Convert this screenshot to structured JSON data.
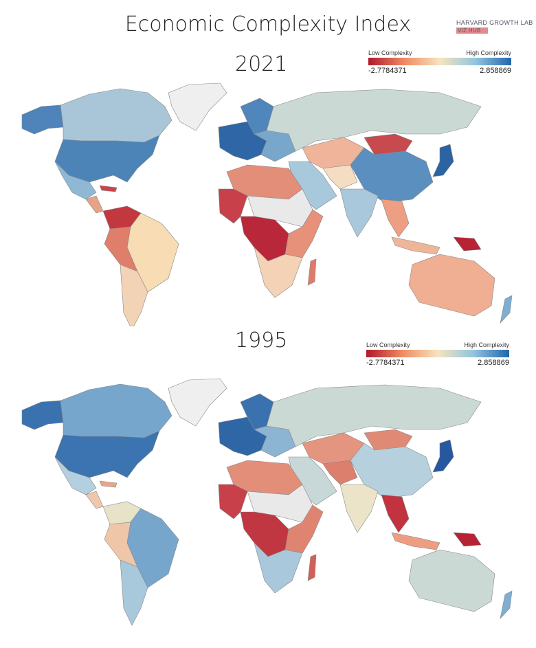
{
  "title": "Economic Complexity Index",
  "brand": {
    "line1": "HARVARD GROWTH LAB",
    "line2": "VIZ HUB"
  },
  "maps": [
    {
      "year": "2021",
      "legend": {
        "low_label": "Low Complexity",
        "high_label": "High Complexity",
        "min": "-2.7784371",
        "max": "2.858869"
      },
      "region_colors": {
        "alaska": "#4e84b9",
        "canada": "#a9c6d8",
        "greenland": "#efefef",
        "usa": "#4c84b8",
        "mexico": "#8fb8d4",
        "caribbean": "#c9444d",
        "central_america": "#e8a286",
        "north_sa": "#c3383f",
        "brazil": "#f7dcb4",
        "west_sa": "#df7e6b",
        "argentina": "#f3d3b6",
        "europe_west": "#2f67a6",
        "europe_east": "#79a7cc",
        "scandinavia": "#4f86bb",
        "russia": "#cbd9d4",
        "central_asia": "#f0b49a",
        "middle_east": "#a8c8dc",
        "iran": "#f5ddc3",
        "mongolia": "#c74a4e",
        "china": "#5a8fc0",
        "japan": "#2b63a3",
        "india": "#a9c8db",
        "se_asia": "#ee9e83",
        "indonesia": "#eeb698",
        "png": "#b72235",
        "north_africa": "#e38e79",
        "west_africa": "#c7404a",
        "sahel": "#e9e9e9",
        "central_africa": "#b8283a",
        "east_africa": "#e7907a",
        "south_africa": "#f4d2b5",
        "madagascar": "#df7c68",
        "australia": "#f0ae92",
        "nz": "#7eaed1"
      }
    },
    {
      "year": "1995",
      "legend": {
        "low_label": "Low Complexity",
        "high_label": "High Complexity",
        "min": "-2.7784371",
        "max": "2.858869"
      },
      "region_colors": {
        "alaska": "#3a72b0",
        "canada": "#77a6cc",
        "greenland": "#efefef",
        "usa": "#3b74b1",
        "mexico": "#b3cfe0",
        "caribbean": "#e8a58a",
        "central_america": "#f0c7a8",
        "north_sa": "#e6e3c9",
        "brazil": "#77a6cc",
        "west_sa": "#f0c6a8",
        "argentina": "#a8c8dc",
        "europe_west": "#2f67a6",
        "europe_east": "#8cb4d3",
        "scandinavia": "#3a72b0",
        "russia": "#cbd9d4",
        "central_asia": "#e4957f",
        "middle_east": "#c8d8d8",
        "iran": "#dc7f6c",
        "mongolia": "#e08a75",
        "china": "#b7d0de",
        "japan": "#2658a0",
        "india": "#ebe4c8",
        "se_asia": "#c2323f",
        "indonesia": "#ee9d82",
        "png": "#b72235",
        "north_africa": "#e38e79",
        "west_africa": "#c7404a",
        "sahel": "#e9e9e9",
        "central_africa": "#c03742",
        "east_africa": "#e08472",
        "south_africa": "#a9c8dc",
        "madagascar": "#d06058",
        "australia": "#cbd9d4",
        "nz": "#7eaed1"
      }
    }
  ]
}
